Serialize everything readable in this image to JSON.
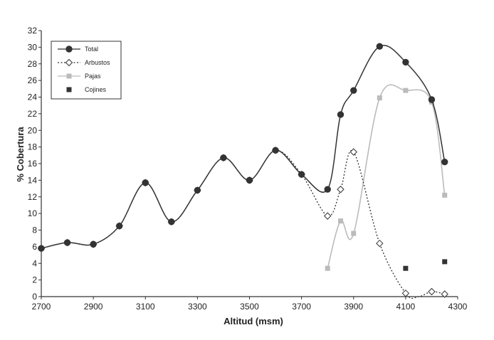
{
  "chart_data": {
    "type": "line",
    "title": "",
    "xlabel": "Altitud (msm)",
    "ylabel": "% Cobertura",
    "xlim": [
      2700,
      4300
    ],
    "ylim": [
      0,
      32
    ],
    "x_ticks": [
      2700,
      2900,
      3100,
      3300,
      3500,
      3700,
      3900,
      4100,
      4300
    ],
    "y_ticks": [
      0,
      2,
      4,
      6,
      8,
      10,
      12,
      14,
      16,
      18,
      20,
      22,
      24,
      26,
      28,
      30,
      32
    ],
    "grid": false,
    "legend_position": "top-left",
    "series": [
      {
        "name": "Total",
        "style": "solid-dark-circle",
        "color": "#333333",
        "points": [
          [
            2700,
            5.8
          ],
          [
            2800,
            6.5
          ],
          [
            2900,
            6.3
          ],
          [
            3000,
            8.5
          ],
          [
            3100,
            13.7
          ],
          [
            3200,
            9.0
          ],
          [
            3300,
            12.8
          ],
          [
            3400,
            16.7
          ],
          [
            3500,
            14.0
          ],
          [
            3600,
            17.6
          ],
          [
            3700,
            14.7
          ],
          [
            3800,
            12.9
          ],
          [
            3850,
            21.9
          ],
          [
            3900,
            24.8
          ],
          [
            4000,
            30.1
          ],
          [
            4100,
            28.2
          ],
          [
            4200,
            23.7
          ],
          [
            4250,
            16.2
          ]
        ]
      },
      {
        "name": "Arbustos",
        "style": "dotted-open-diamond",
        "color": "#333333",
        "points": [
          [
            2700,
            5.8
          ],
          [
            2800,
            6.5
          ],
          [
            2900,
            6.3
          ],
          [
            3000,
            8.5
          ],
          [
            3100,
            13.7
          ],
          [
            3200,
            9.0
          ],
          [
            3300,
            12.8
          ],
          [
            3400,
            16.7
          ],
          [
            3500,
            14.0
          ],
          [
            3600,
            17.6
          ],
          [
            3700,
            14.7
          ],
          [
            3800,
            9.7
          ],
          [
            3850,
            12.9
          ],
          [
            3900,
            17.4
          ],
          [
            4000,
            6.4
          ],
          [
            4100,
            0.4
          ],
          [
            4150,
            0.0
          ],
          [
            4200,
            0.6
          ],
          [
            4250,
            0.3
          ]
        ]
      },
      {
        "name": "Pajas",
        "style": "solid-light-square",
        "color": "#bbbbbb",
        "points": [
          [
            3800,
            3.4
          ],
          [
            3850,
            9.1
          ],
          [
            3900,
            7.6
          ],
          [
            4000,
            23.9
          ],
          [
            4100,
            24.8
          ],
          [
            4200,
            23.4
          ],
          [
            4250,
            12.2
          ]
        ]
      },
      {
        "name": "Cojines",
        "style": "markers-dark-square",
        "color": "#333333",
        "points": [
          [
            4100,
            3.4
          ],
          [
            4250,
            4.2
          ]
        ]
      }
    ]
  }
}
